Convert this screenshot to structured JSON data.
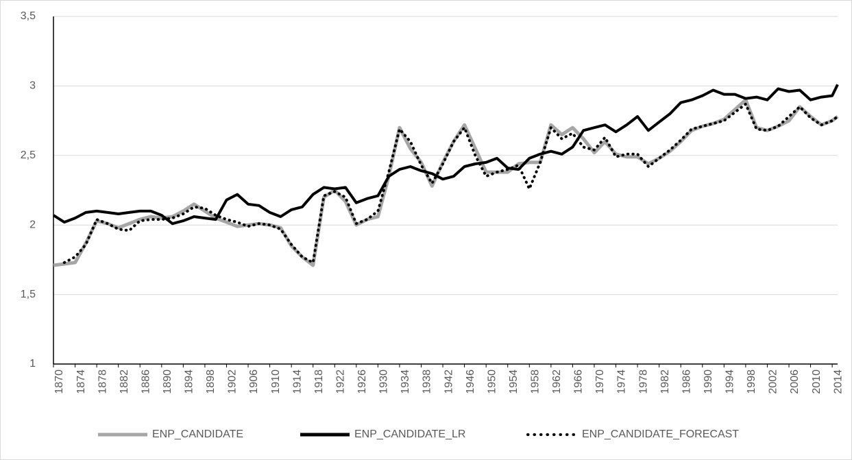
{
  "chart_data": {
    "type": "line",
    "x": [
      1870,
      1872,
      1874,
      1876,
      1878,
      1880,
      1882,
      1884,
      1886,
      1888,
      1890,
      1892,
      1894,
      1896,
      1898,
      1900,
      1902,
      1904,
      1906,
      1908,
      1910,
      1912,
      1914,
      1916,
      1918,
      1920,
      1922,
      1924,
      1926,
      1928,
      1930,
      1932,
      1934,
      1936,
      1938,
      1940,
      1942,
      1944,
      1946,
      1948,
      1950,
      1952,
      1954,
      1956,
      1958,
      1960,
      1962,
      1964,
      1966,
      1968,
      1970,
      1972,
      1974,
      1976,
      1978,
      1980,
      1982,
      1984,
      1986,
      1988,
      1990,
      1992,
      1994,
      1996,
      1998,
      2000,
      2002,
      2004,
      2006,
      2008,
      2010,
      2012,
      2014,
      2015
    ],
    "series": [
      {
        "name": "ENP_CANDIDATE",
        "color": "#a6a6a6",
        "style": "solid",
        "values": [
          1.71,
          1.72,
          1.73,
          1.87,
          2.03,
          2.01,
          1.98,
          2.01,
          2.04,
          2.06,
          2.05,
          2.06,
          2.1,
          2.15,
          2.1,
          2.05,
          2.02,
          1.99,
          2.0,
          2.01,
          2.0,
          1.98,
          1.85,
          1.77,
          1.71,
          2.2,
          2.25,
          2.17,
          2.0,
          2.04,
          2.06,
          2.35,
          2.7,
          2.55,
          2.45,
          2.28,
          2.45,
          2.6,
          2.72,
          2.55,
          2.38,
          2.38,
          2.38,
          2.44,
          2.45,
          2.45,
          2.72,
          2.65,
          2.7,
          2.62,
          2.52,
          2.6,
          2.51,
          2.49,
          2.49,
          2.44,
          2.48,
          2.53,
          2.6,
          2.68,
          2.71,
          2.73,
          2.76,
          2.83,
          2.9,
          2.7,
          2.68,
          2.71,
          2.75,
          2.85,
          2.78,
          2.72,
          2.75,
          2.78
        ]
      },
      {
        "name": "ENP_CANDIDATE_LR",
        "color": "#000000",
        "style": "solid",
        "values": [
          2.07,
          2.02,
          2.05,
          2.09,
          2.1,
          2.09,
          2.08,
          2.09,
          2.1,
          2.1,
          2.07,
          2.01,
          2.03,
          2.06,
          2.05,
          2.04,
          2.18,
          2.22,
          2.15,
          2.14,
          2.09,
          2.06,
          2.11,
          2.13,
          2.22,
          2.27,
          2.26,
          2.27,
          2.16,
          2.19,
          2.21,
          2.35,
          2.4,
          2.42,
          2.39,
          2.37,
          2.33,
          2.35,
          2.42,
          2.44,
          2.45,
          2.48,
          2.41,
          2.4,
          2.48,
          2.51,
          2.53,
          2.51,
          2.56,
          2.68,
          2.7,
          2.72,
          2.67,
          2.72,
          2.78,
          2.68,
          2.74,
          2.8,
          2.88,
          2.9,
          2.93,
          2.97,
          2.94,
          2.94,
          2.91,
          2.92,
          2.9,
          2.98,
          2.96,
          2.97,
          2.9,
          2.92,
          2.93,
          3.01
        ]
      },
      {
        "name": "ENP_CANDIDATE_FORECAST",
        "color": "#000000",
        "style": "dotted",
        "values": [
          null,
          1.73,
          1.77,
          1.86,
          2.04,
          2.01,
          1.97,
          1.96,
          2.03,
          2.04,
          2.04,
          2.05,
          2.08,
          2.13,
          2.12,
          2.07,
          2.04,
          2.02,
          1.99,
          2.01,
          2.0,
          1.97,
          1.86,
          1.77,
          1.73,
          2.21,
          2.24,
          2.2,
          2.01,
          2.04,
          2.1,
          2.38,
          2.69,
          2.6,
          2.43,
          2.3,
          2.44,
          2.6,
          2.7,
          2.5,
          2.35,
          2.38,
          2.4,
          2.43,
          2.26,
          2.45,
          2.7,
          2.62,
          2.66,
          2.56,
          2.54,
          2.63,
          2.49,
          2.51,
          2.51,
          2.42,
          2.48,
          2.54,
          2.61,
          2.69,
          2.71,
          2.73,
          2.75,
          2.81,
          2.87,
          2.69,
          2.68,
          2.71,
          2.78,
          2.85,
          2.77,
          2.72,
          2.75,
          2.78
        ]
      }
    ],
    "xlim": [
      1870,
      2015
    ],
    "xticks": [
      1870,
      1874,
      1878,
      1882,
      1886,
      1890,
      1894,
      1898,
      1902,
      1906,
      1910,
      1914,
      1918,
      1922,
      1926,
      1930,
      1934,
      1938,
      1942,
      1946,
      1950,
      1954,
      1958,
      1962,
      1966,
      1970,
      1974,
      1978,
      1982,
      1986,
      1990,
      1994,
      1998,
      2002,
      2006,
      2010,
      2014
    ],
    "ylim": [
      1,
      3.5
    ],
    "yticks": [
      1,
      {
        "value": 1.5,
        "label": "1,5"
      },
      2,
      {
        "value": 2.5,
        "label": "2,5"
      },
      3,
      {
        "value": 3.5,
        "label": "3,5"
      }
    ],
    "grid": true,
    "legend": "bottom"
  }
}
